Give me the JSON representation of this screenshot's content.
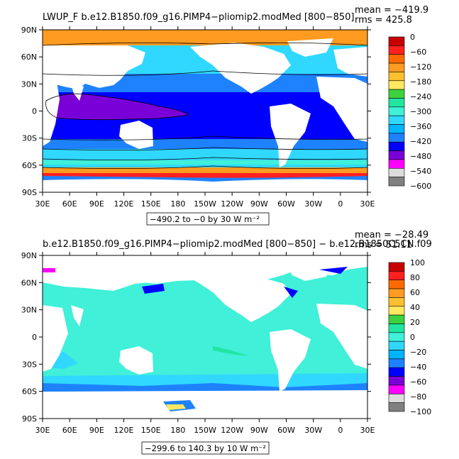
{
  "top_panel": {
    "title": "LWUP_F  b.e12.B1850.f09_g16.PIMP4−pliomip2.modMed  [800−850]",
    "mean": "mean = −419.9",
    "rms": "rms = 425.8",
    "range_note": "−490.2 to −0 by 30  W m⁻²",
    "lat_labels": [
      "90N",
      "60N",
      "30N",
      "0",
      "30S",
      "60S",
      "90S"
    ],
    "lon_labels": [
      "30E",
      "60E",
      "90E",
      "120E",
      "150E",
      "180",
      "150W",
      "120W",
      "90W",
      "60W",
      "30W",
      "0",
      "30E"
    ],
    "colorbar": {
      "labels": [
        "0",
        "−60",
        "−120",
        "−180",
        "−240",
        "−300",
        "−360",
        "−420",
        "−480",
        "−540",
        "−600"
      ],
      "colors": [
        "#c80000",
        "#ff2020",
        "#ff6a00",
        "#ff9b20",
        "#ffc030",
        "#ffe860",
        "#3dd23d",
        "#20e6a0",
        "#40f0d8",
        "#30d8ff",
        "#00b4ff",
        "#1e82ff",
        "#0000ff",
        "#7a00d8",
        "#ff00ff",
        "#dcdcdc",
        "#808080"
      ]
    }
  },
  "bottom_panel": {
    "title": "b.e12.B1850.f09_g16.PIMP4−pliomip2.modMed  [800−850]  −  b.e12.B1850C5CN.f09",
    "mean": "mean = −28.49",
    "rms": "rms = 51.11",
    "range_note": "−299.6 to 140.3 by 10  W m⁻²",
    "lat_labels": [
      "90N",
      "60N",
      "30N",
      "0",
      "30S",
      "60S",
      "90S"
    ],
    "lon_labels": [
      "30E",
      "60E",
      "90E",
      "120E",
      "150E",
      "180",
      "150W",
      "120W",
      "90W",
      "60W",
      "30W",
      "0",
      "30E"
    ],
    "colorbar": {
      "labels": [
        "100",
        "80",
        "60",
        "40",
        "20",
        "0",
        "−20",
        "−40",
        "−60",
        "−80",
        "−100"
      ],
      "colors": [
        "#c80000",
        "#ff2020",
        "#ff6a00",
        "#ff9b20",
        "#ffc030",
        "#ffe860",
        "#3dd23d",
        "#20e6a0",
        "#40f0d8",
        "#30d8ff",
        "#00b4ff",
        "#1e82ff",
        "#0000ff",
        "#7a00d8",
        "#ff00ff",
        "#dcdcdc",
        "#808080"
      ]
    }
  },
  "colors": {
    "land": "#ffffff",
    "ocean_top_tropics": "#0000ff",
    "ocean_top_purple": "#7a00d8",
    "ocean_top_mid": "#1e82ff",
    "ocean_top_light": "#30d8ff",
    "arctic_top": "#ff9b20",
    "ocean_bottom": "#40f0d8"
  }
}
